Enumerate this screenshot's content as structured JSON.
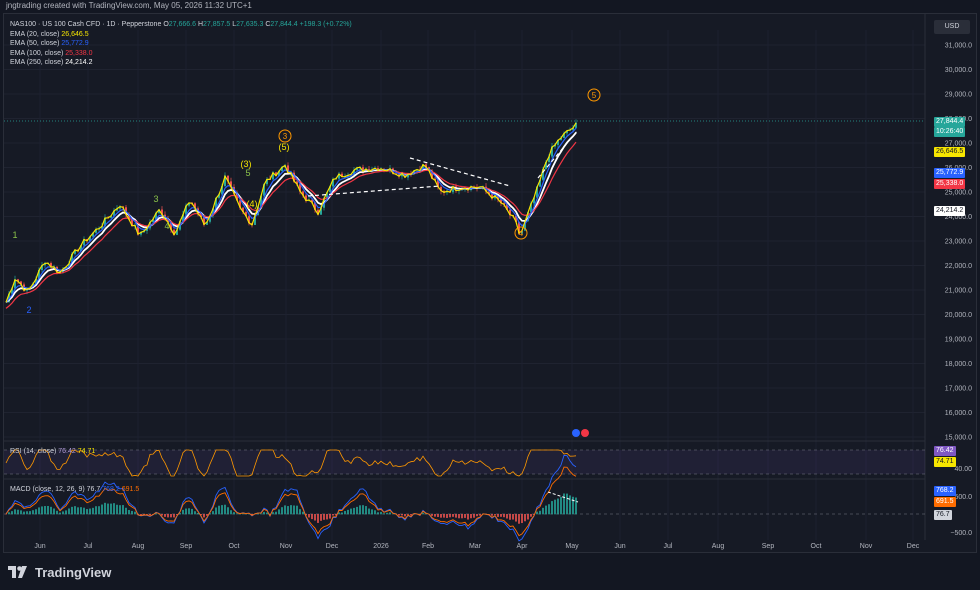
{
  "header": {
    "credit": "jngtrading created with TradingView.com, May 05, 2026 11:32 UTC+1"
  },
  "legend": {
    "symbol": "NAS100 · US 100 Cash CFD · 1D · Pepperstone",
    "o_label": "O",
    "o": "27,666.6",
    "h_label": "H",
    "h": "27,857.5",
    "l_label": "L",
    "l": "27,635.3",
    "c_label": "C",
    "c": "27,844.4",
    "change": "+198.3 (+0.72%)",
    "emas": [
      {
        "label": "EMA (20, close)",
        "value": "26,646.5",
        "color": "#f7e600"
      },
      {
        "label": "EMA (50, close)",
        "value": "25,772.9",
        "color": "#2962ff"
      },
      {
        "label": "EMA (100, close)",
        "value": "25,338.0",
        "color": "#f23645"
      },
      {
        "label": "EMA (250, close)",
        "value": "24,214.2",
        "color": "#ffffff"
      }
    ]
  },
  "currency": "USD",
  "price_axis": [
    "31,000.0",
    "30,000.0",
    "29,000.0",
    "28,000.0",
    "27,000.0",
    "26,000.0",
    "25,000.0",
    "24,000.0",
    "23,000.0",
    "22,000.0",
    "21,000.0",
    "20,000.0",
    "19,000.0",
    "18,000.0",
    "17,000.0",
    "16,000.0",
    "15,000.0"
  ],
  "price_tags": [
    {
      "label": "27,844.4",
      "sub": "10:26:40",
      "bg": "#26a69a",
      "fg": "#ffffff",
      "price": 27844.4
    },
    {
      "label": "26,646.5",
      "bg": "#f7e600",
      "fg": "#131722",
      "price": 26646.5
    },
    {
      "label": "25,772.9",
      "bg": "#2962ff",
      "fg": "#ffffff",
      "price": 25772.9
    },
    {
      "label": "25,338.0",
      "bg": "#f23645",
      "fg": "#ffffff",
      "price": 25338.0
    },
    {
      "label": "24,214.2",
      "bg": "#ffffff",
      "fg": "#131722",
      "price": 24214.2
    }
  ],
  "rsi": {
    "label": "RSI (14, close)",
    "v1": "76.42",
    "v2": "74.71",
    "axis": [
      "40.00"
    ],
    "tag1": "76.42",
    "tag2": "74.71"
  },
  "macd": {
    "label": "MACD (close, 12, 26, 9)",
    "v1": "76.7",
    "v2": "768.2",
    "v3": "691.5",
    "axis": [
      "500.0",
      "−500.0"
    ],
    "tag1": "768.2",
    "tag2": "691.5",
    "tag3": "76.7"
  },
  "time_axis": [
    "Jun",
    "Jul",
    "Aug",
    "Sep",
    "Oct",
    "Nov",
    "Dec",
    "2026",
    "Feb",
    "Mar",
    "Apr",
    "May",
    "Jun",
    "Jul",
    "Aug",
    "Sep",
    "Oct",
    "Nov",
    "Dec"
  ],
  "wave_labels": [
    "1",
    "2",
    "3",
    "4",
    "5",
    "(3)",
    "(4)",
    "(5)",
    "3",
    "4",
    "5"
  ],
  "brand": "TradingView",
  "colors": {
    "up": "#26a69a",
    "down": "#ef5350",
    "ema20": "#f7e600",
    "ema50": "#2962ff",
    "ema100": "#f23645",
    "ema250": "#ffffff",
    "wave_orange": "#ff9800",
    "wave_green": "#8bc34a"
  }
}
